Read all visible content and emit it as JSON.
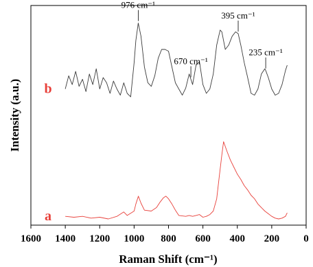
{
  "chart_data": {
    "type": "line",
    "title": "",
    "xlabel": "Raman Shift (cm⁻¹)",
    "ylabel": "Intensity (a.u.)",
    "xlim": [
      1600,
      0
    ],
    "xticks": [
      "1600",
      "1400",
      "1200",
      "1000",
      "800",
      "600",
      "400",
      "200",
      "0"
    ],
    "xtick_values": [
      1600,
      1400,
      1200,
      1000,
      800,
      600,
      400,
      200,
      0
    ],
    "y_ticks_shown": false,
    "grid": false,
    "colors": {
      "a": "#e8403a",
      "b": "#3a3a3a",
      "tag": "#e8403a"
    },
    "series": [
      {
        "name": "a",
        "x": [
          1400,
          1350,
          1300,
          1250,
          1200,
          1150,
          1100,
          1060,
          1040,
          1000,
          990,
          975,
          960,
          940,
          900,
          870,
          850,
          830,
          815,
          800,
          780,
          760,
          740,
          700,
          680,
          660,
          640,
          620,
          600,
          580,
          560,
          540,
          520,
          505,
          490,
          480,
          460,
          440,
          420,
          400,
          380,
          360,
          340,
          320,
          300,
          280,
          260,
          240,
          220,
          200,
          180,
          160,
          140,
          120,
          110
        ],
        "y": [
          0.1,
          0.09,
          0.1,
          0.08,
          0.09,
          0.07,
          0.1,
          0.15,
          0.11,
          0.16,
          0.24,
          0.33,
          0.25,
          0.17,
          0.16,
          0.2,
          0.26,
          0.31,
          0.33,
          0.3,
          0.24,
          0.17,
          0.11,
          0.1,
          0.11,
          0.1,
          0.11,
          0.12,
          0.09,
          0.1,
          0.12,
          0.16,
          0.3,
          0.55,
          0.8,
          0.95,
          0.84,
          0.74,
          0.66,
          0.58,
          0.52,
          0.45,
          0.4,
          0.34,
          0.3,
          0.24,
          0.2,
          0.16,
          0.13,
          0.1,
          0.08,
          0.07,
          0.08,
          0.1,
          0.14
        ]
      },
      {
        "name": "b",
        "x": [
          1400,
          1380,
          1360,
          1340,
          1320,
          1300,
          1280,
          1260,
          1240,
          1220,
          1200,
          1180,
          1160,
          1140,
          1120,
          1100,
          1080,
          1060,
          1040,
          1020,
          1000,
          990,
          976,
          960,
          940,
          920,
          900,
          880,
          860,
          840,
          820,
          800,
          780,
          760,
          740,
          720,
          700,
          680,
          670,
          660,
          640,
          620,
          600,
          580,
          560,
          540,
          520,
          500,
          490,
          470,
          450,
          430,
          410,
          395,
          380,
          360,
          340,
          320,
          300,
          280,
          260,
          240,
          235,
          220,
          200,
          180,
          160,
          140,
          120,
          110
        ],
        "y": [
          1.55,
          1.7,
          1.6,
          1.75,
          1.58,
          1.66,
          1.52,
          1.72,
          1.6,
          1.78,
          1.55,
          1.68,
          1.62,
          1.5,
          1.64,
          1.55,
          1.48,
          1.62,
          1.5,
          1.46,
          1.85,
          2.1,
          2.3,
          2.15,
          1.8,
          1.62,
          1.58,
          1.7,
          1.9,
          2.0,
          2.0,
          1.98,
          1.8,
          1.62,
          1.55,
          1.48,
          1.56,
          1.72,
          1.66,
          1.6,
          1.82,
          1.86,
          1.6,
          1.5,
          1.55,
          1.72,
          2.05,
          2.22,
          2.2,
          2.0,
          2.05,
          2.15,
          2.2,
          2.18,
          2.05,
          1.85,
          1.68,
          1.5,
          1.48,
          1.55,
          1.72,
          1.78,
          1.76,
          1.68,
          1.55,
          1.48,
          1.5,
          1.6,
          1.76,
          1.82
        ]
      }
    ],
    "series_tags": [
      "a",
      "b"
    ],
    "annotations": [
      "976 cm⁻¹",
      "670 cm⁻¹",
      "395 cm⁻¹",
      "235 cm⁻¹"
    ],
    "annotation_positions": [
      976,
      670,
      395,
      235
    ]
  }
}
